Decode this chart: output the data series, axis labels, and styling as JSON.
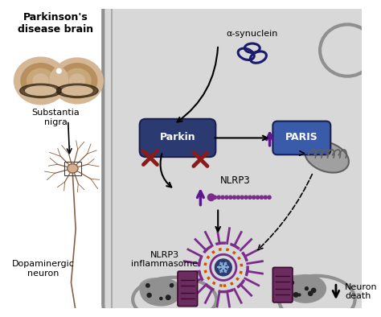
{
  "bg_color": "#ffffff",
  "cell_bg": "#d8d8d8",
  "cell_border": "#909090",
  "title_text": "Parkinson's\ndisease brain",
  "substantia_nigra_text": "Substantia\nnigra",
  "dopaminergic_text": "Dopaminergic\nneuron",
  "alpha_syn_text": "α-synuclein",
  "parkin_text": "Parkin",
  "paris_text": "PARIS",
  "nlrp3_text": "NLRP3",
  "inflammasome_text": "NLRP3\ninflammasome",
  "neuron_death_text": "Neuron\ndeath",
  "parkin_color": "#2b3a70",
  "paris_color": "#3a5aaa",
  "parkin_x_color": "#8b1a1a",
  "arrow_color": "#000000",
  "up_arrow_color": "#5b1a8a",
  "nlrp3_color": "#7b2d8b",
  "inflammasome_center_fill": "#2b3a70",
  "inflammasome_ring_orange": "#cc5500",
  "inflammasome_ring_purple": "#7b2d8b",
  "inflammasome_outer_purple": "#7b2d8b",
  "inflammasome_spikes": "#7b2d8b",
  "mitochondria_fill": "#a0a0a0",
  "mitochondria_border": "#606060",
  "dead_cell_fill": "#909090",
  "channel_color": "#6b2d5e",
  "brain_outer": "#d4b896",
  "brain_mid": "#b89060",
  "brain_inner": "#c8a878",
  "neuron_color": "#8b6040"
}
